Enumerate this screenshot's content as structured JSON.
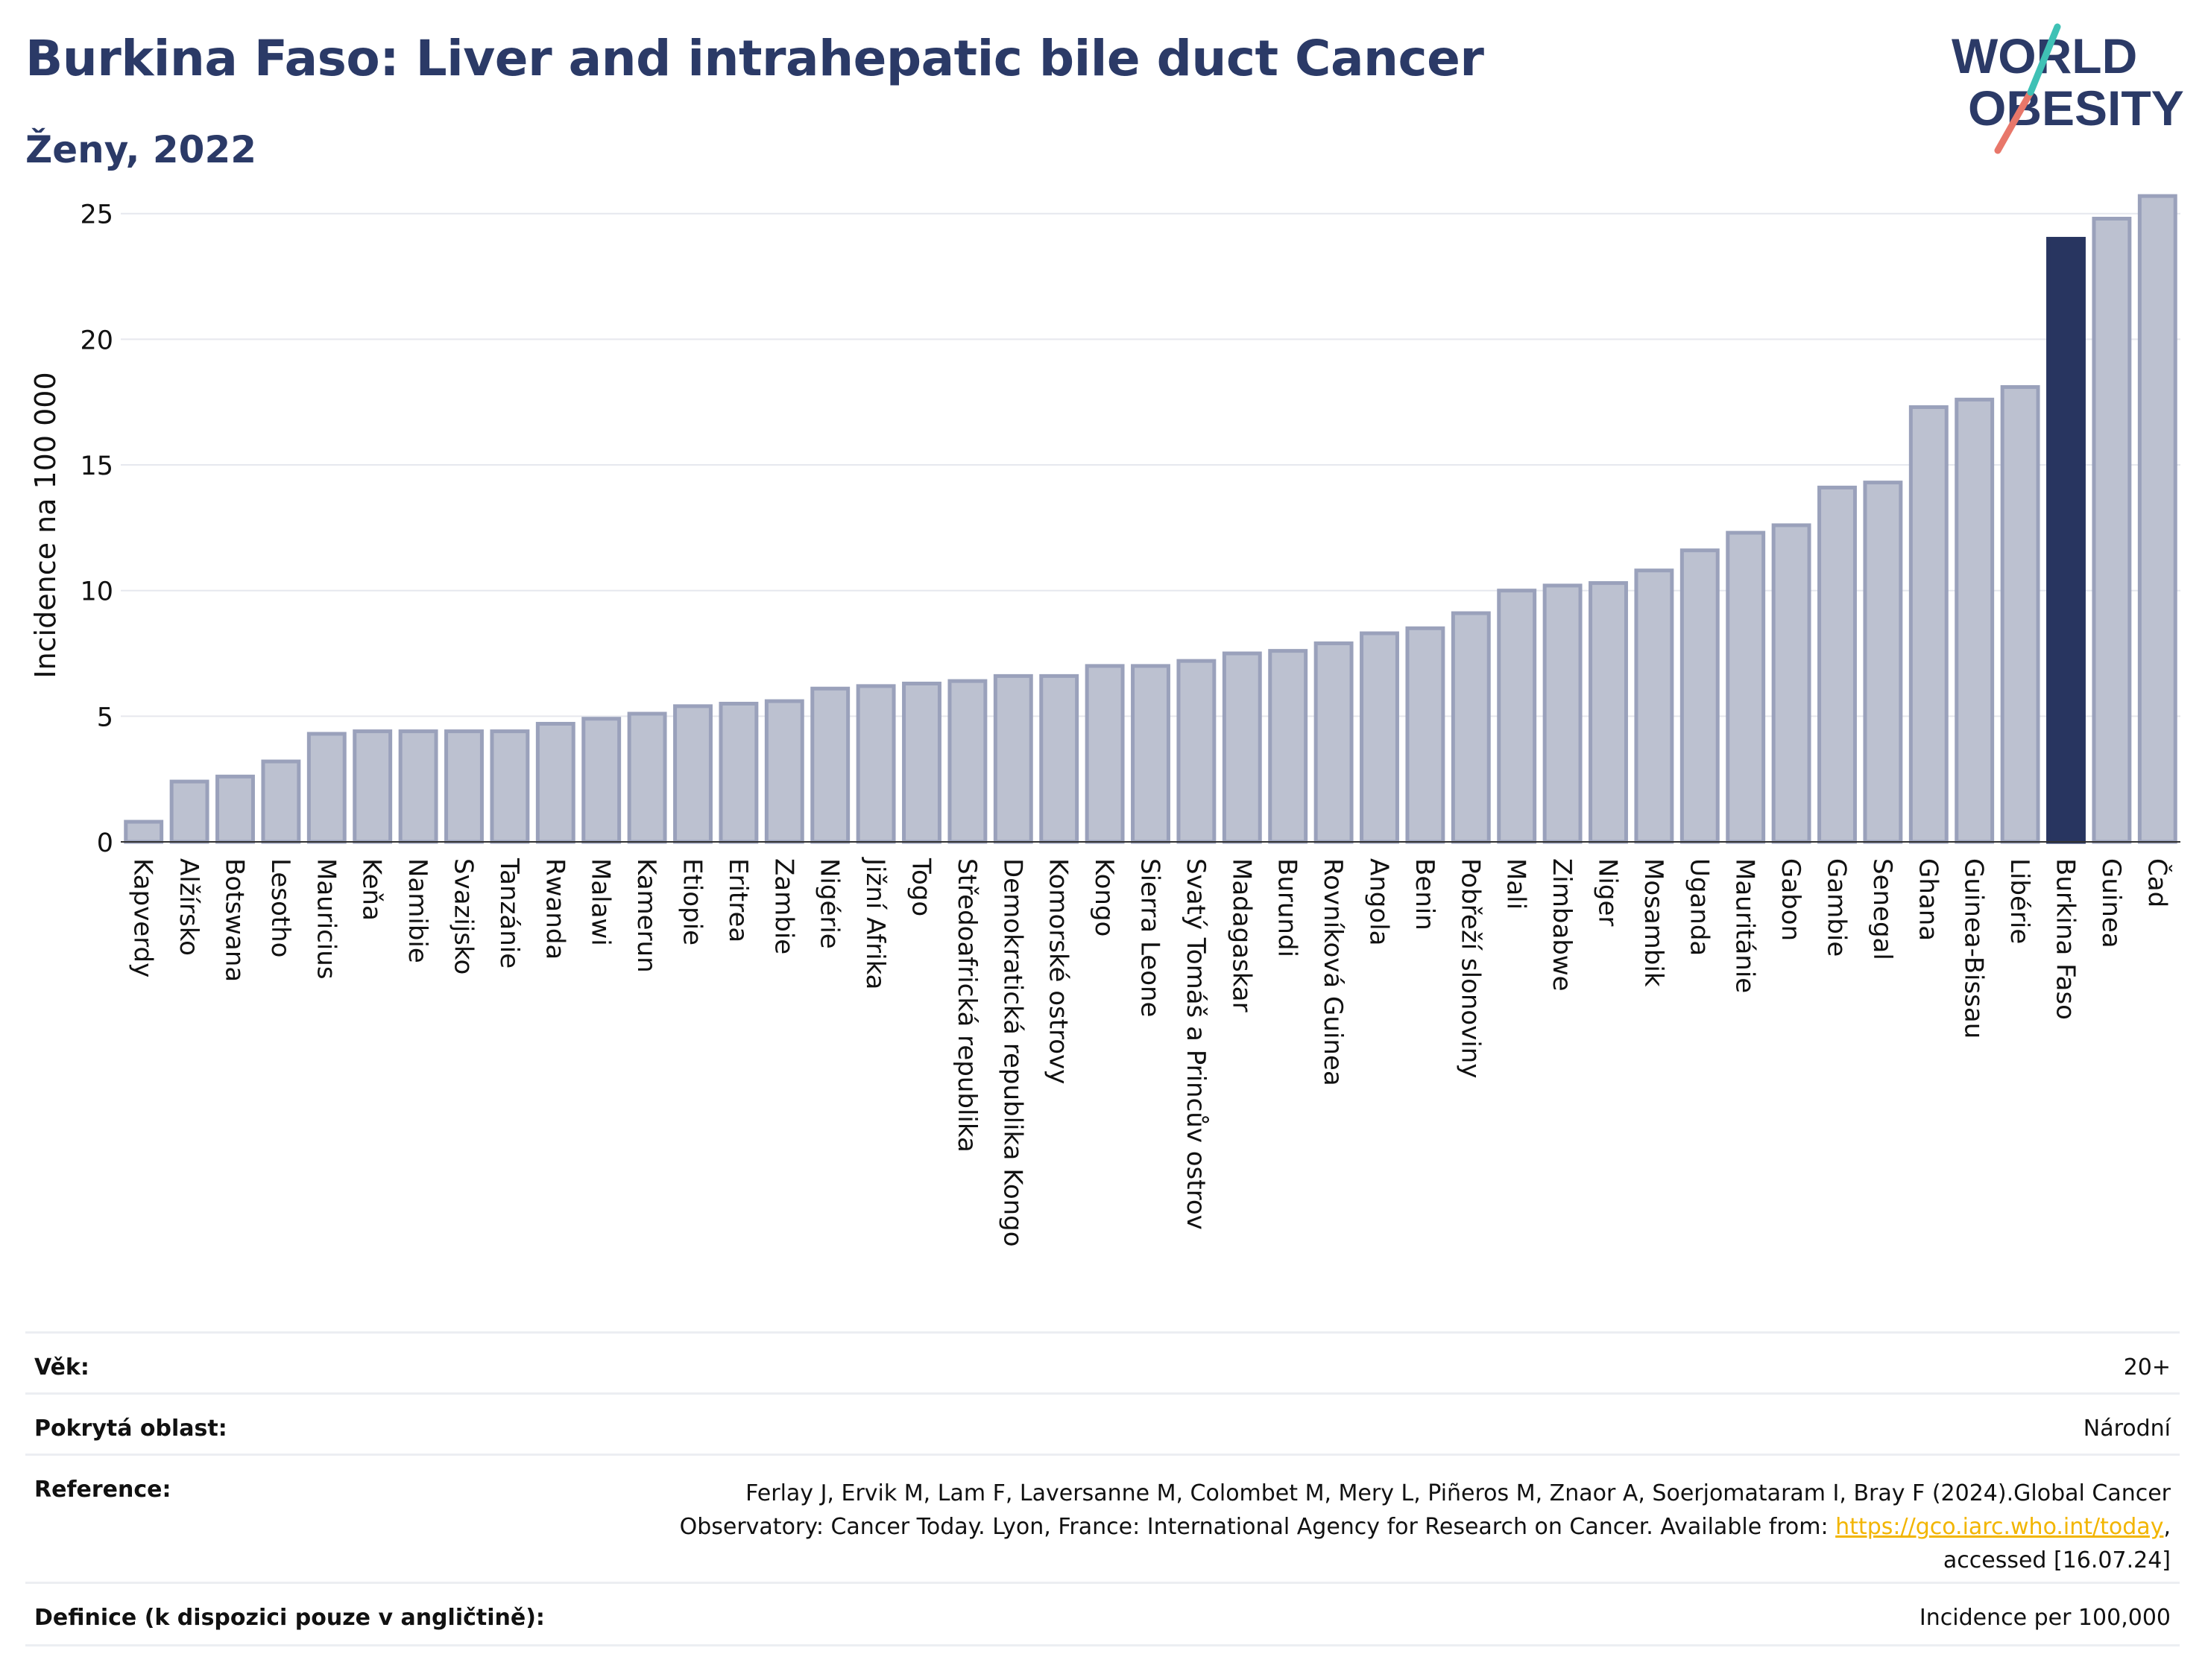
{
  "header": {
    "title": "Burkina Faso: Liver and intrahepatic bile duct Cancer",
    "subtitle": "Ženy, 2022"
  },
  "logo": {
    "line1": "WORLD",
    "line2": "OBESITY"
  },
  "colors": {
    "bar": "#bcc1d0",
    "bar_border": "#9aa1bb",
    "highlight": "#283560",
    "title": "#2b3a67",
    "grid": "#e6e8ee"
  },
  "chart_data": {
    "type": "bar",
    "title": "Burkina Faso: Liver and intrahepatic bile duct Cancer",
    "subtitle": "Ženy, 2022",
    "ylabel": "Incidence na 100 000",
    "xlabel": "",
    "ylim": [
      0,
      26
    ],
    "yticks": [
      0,
      5,
      10,
      15,
      20,
      25
    ],
    "grid": true,
    "highlight": "Burkina Faso",
    "categories": [
      "Kapverdy",
      "Alžírsko",
      "Botswana",
      "Lesotho",
      "Mauricius",
      "Keňa",
      "Namibie",
      "Svazijsko",
      "Tanzánie",
      "Rwanda",
      "Malawi",
      "Kamerun",
      "Etiopie",
      "Eritrea",
      "Zambie",
      "Nigérie",
      "Jižní Afrika",
      "Togo",
      "Středoafrická republika",
      "Demokratická republika Kongo",
      "Komorské ostrovy",
      "Kongo",
      "Sierra Leone",
      "Svatý Tomáš a Princův ostrov",
      "Madagaskar",
      "Burundi",
      "Rovníková Guinea",
      "Angola",
      "Benin",
      "Pobřeží slonoviny",
      "Mali",
      "Zimbabwe",
      "Niger",
      "Mosambik",
      "Uganda",
      "Mauritánie",
      "Gabon",
      "Gambie",
      "Senegal",
      "Ghana",
      "Guinea-Bissau",
      "Libérie",
      "Burkina Faso",
      "Guinea",
      "Čad"
    ],
    "values": [
      0.8,
      2.4,
      2.6,
      3.2,
      4.3,
      4.4,
      4.4,
      4.4,
      4.4,
      4.7,
      4.9,
      5.1,
      5.4,
      5.5,
      5.6,
      6.1,
      6.2,
      6.3,
      6.4,
      6.6,
      6.6,
      7.0,
      7.0,
      7.2,
      7.5,
      7.6,
      7.9,
      8.3,
      8.5,
      9.1,
      10.0,
      10.2,
      10.3,
      10.8,
      11.6,
      12.3,
      12.6,
      14.1,
      14.3,
      17.3,
      17.6,
      18.1,
      24.0,
      24.8,
      25.7
    ]
  },
  "meta": {
    "age_label": "Věk:",
    "age_value": "20+",
    "coverage_label": "Pokrytá oblast:",
    "coverage_value": "Národní",
    "reference_label": "Reference:",
    "reference_line1": "Ferlay J, Ervik M, Lam F, Laversanne M, Colombet M, Mery L, Piñeros M, Znaor A, Soerjomataram I, Bray F (2024).Global Cancer",
    "reference_line2": "Observatory: Cancer Today. Lyon, France: International Agency for Research on Cancer. Available from:",
    "reference_link": "https://gco.iarc.who.int/today",
    "reference_line3": "accessed [16.07.24]",
    "definition_label": "Definice (k dispozici pouze v angličtině):",
    "definition_value": "Incidence per 100,000"
  }
}
